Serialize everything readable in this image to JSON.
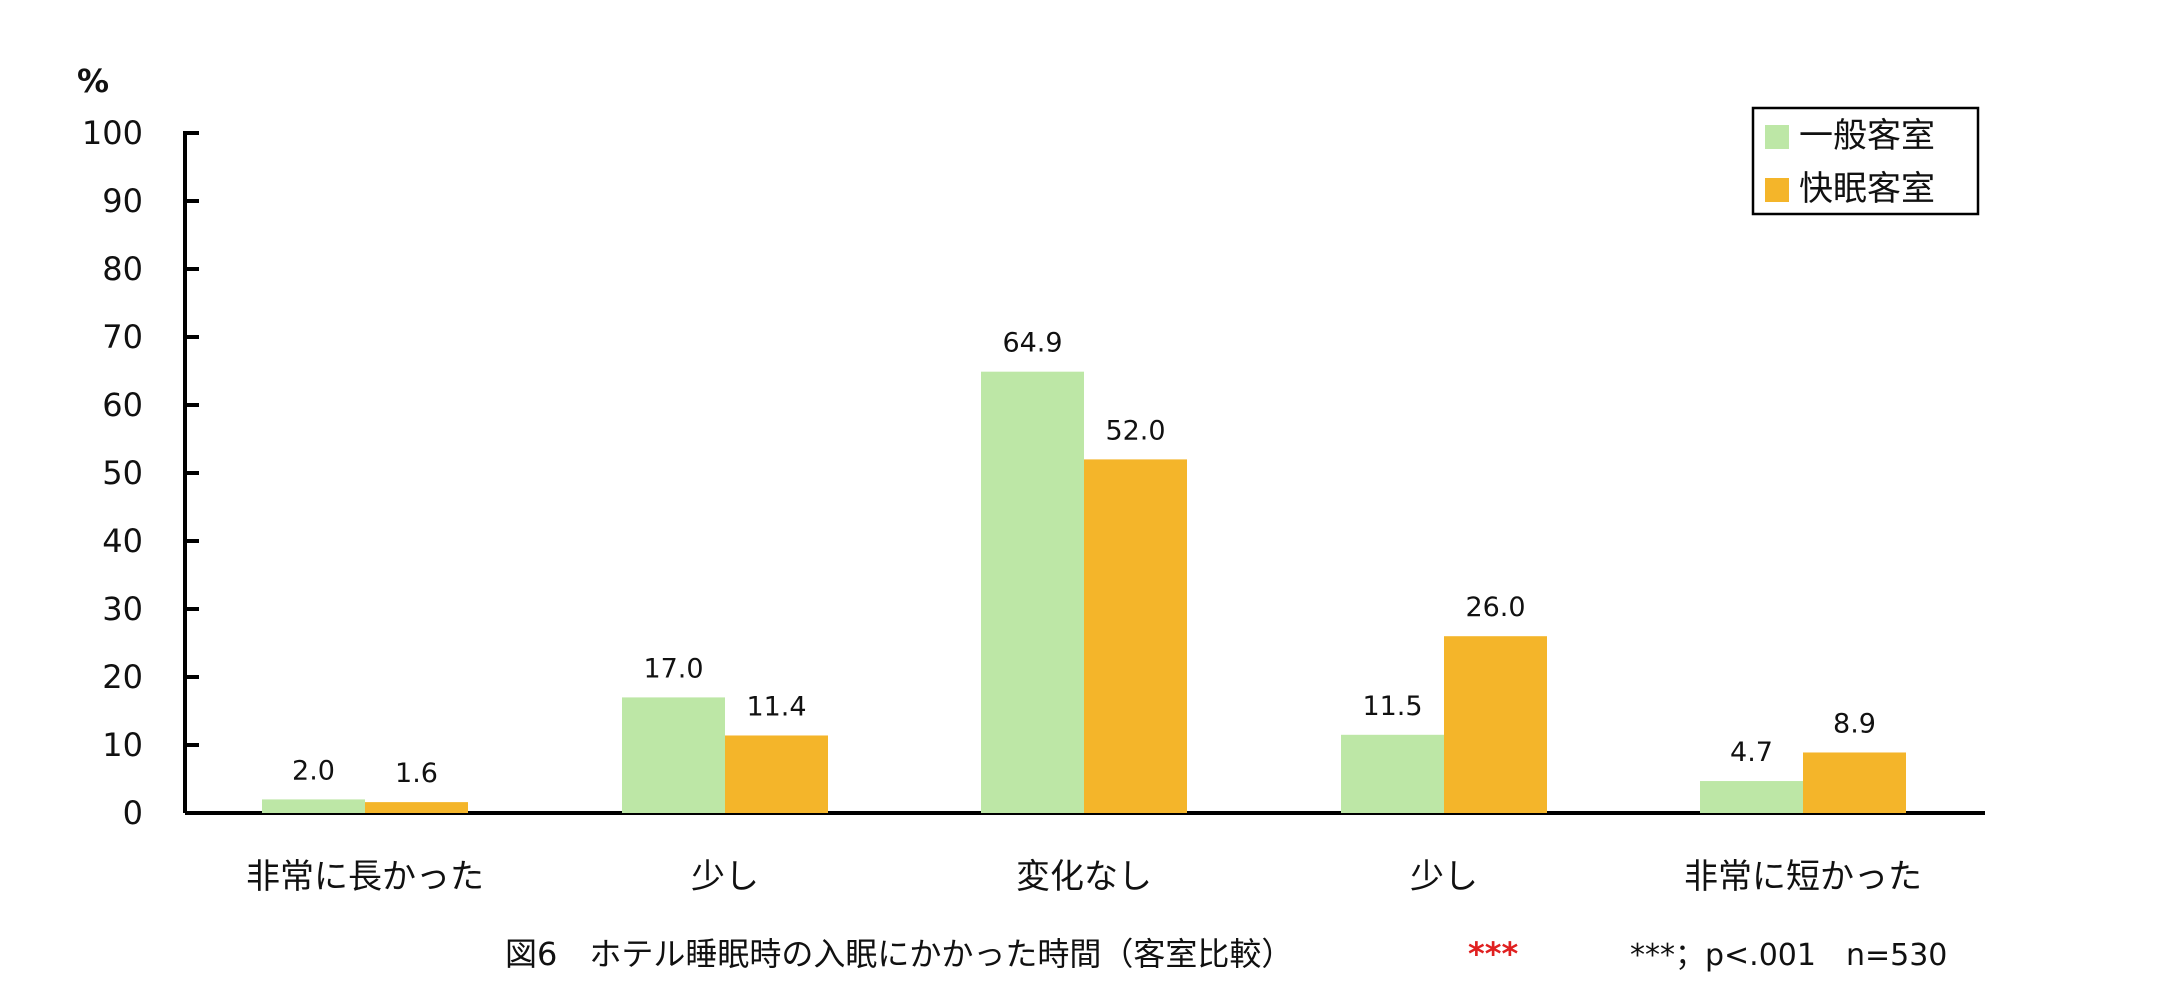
{
  "chart_data": {
    "type": "bar",
    "title": "",
    "ylabel": "%",
    "xlabel": "",
    "ylim": [
      0,
      100
    ],
    "yticks": [
      0,
      10,
      20,
      30,
      40,
      50,
      60,
      70,
      80,
      90,
      100
    ],
    "grid": false,
    "legend_position": "top-right",
    "categories": [
      "非常に長かった",
      "少し",
      "変化なし",
      "少し",
      "非常に短かった"
    ],
    "series": [
      {
        "name": "一般客室",
        "color": "#bde7a6",
        "values": [
          2.0,
          17.0,
          64.9,
          11.5,
          4.7
        ]
      },
      {
        "name": "快眠客室",
        "color": "#f4b52a",
        "values": [
          1.6,
          11.4,
          52.0,
          26.0,
          8.9
        ]
      }
    ]
  },
  "caption": {
    "title": "図6　ホテル睡眠時の入眠にかかった時間（客室比較）",
    "significance": "***",
    "note": "***；p<.001　n=530"
  }
}
